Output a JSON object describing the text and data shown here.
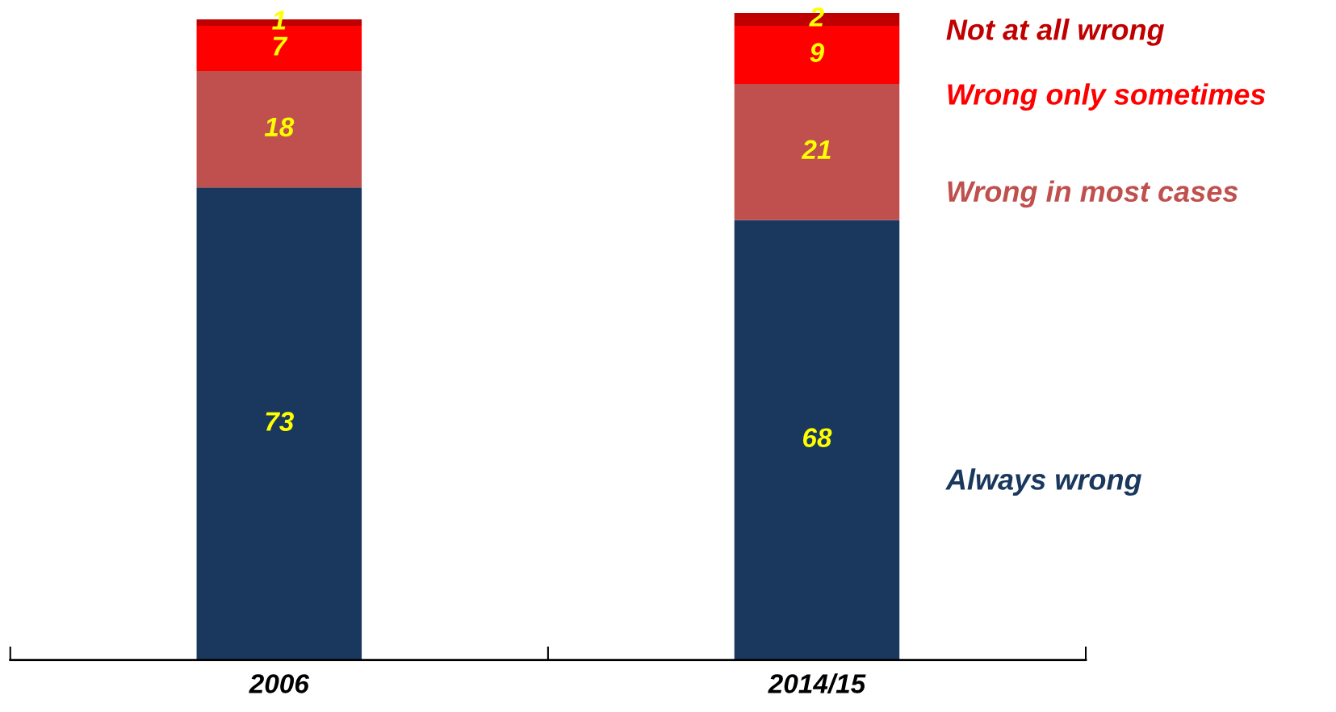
{
  "chart_data": {
    "type": "bar",
    "stacked": true,
    "data_labels": true,
    "ylim": [
      0,
      100
    ],
    "tick_labels": "x",
    "legend": false,
    "grid": false,
    "categories": [
      "2006",
      "2014/15"
    ],
    "series": [
      {
        "name": "Always wrong",
        "color": "#1a375e",
        "values": [
          73,
          68
        ]
      },
      {
        "name": "Wrong in most cases",
        "color": "#c0504d",
        "values": [
          18,
          21
        ]
      },
      {
        "name": "Wrong only sometimes",
        "color": "#ff0000",
        "values": [
          7,
          9
        ]
      },
      {
        "name": "Not at all wrong",
        "color": "#c00000",
        "values": [
          1,
          2
        ]
      }
    ]
  }
}
